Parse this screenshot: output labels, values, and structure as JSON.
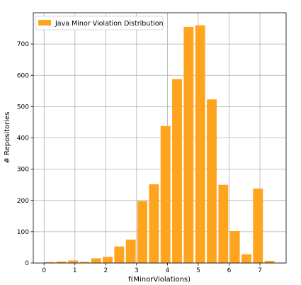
{
  "chart_data": {
    "type": "bar",
    "xlabel": "f(MinorViolations)",
    "ylabel": "# Repositories",
    "legend": {
      "label": "Java Minor Violation Distribution",
      "placement": "top-left"
    },
    "bar_color": "#ffa41f",
    "grid": true,
    "xlim": [
      -0.35,
      7.85
    ],
    "ylim": [
      0,
      800
    ],
    "xticks": [
      0,
      1,
      2,
      3,
      4,
      5,
      6,
      7
    ],
    "yticks": [
      0,
      100,
      200,
      300,
      400,
      500,
      600,
      700
    ],
    "bin_width": 0.375,
    "bin_centers": [
      0.1875,
      0.5625,
      0.9375,
      1.3125,
      1.6875,
      2.0625,
      2.4375,
      2.8125,
      3.1875,
      3.5625,
      3.9375,
      4.3125,
      4.6875,
      5.0625,
      5.4375,
      5.8125,
      6.1875,
      6.5625,
      6.9375,
      7.3125
    ],
    "values": [
      3,
      5,
      8,
      4,
      15,
      20,
      53,
      75,
      198,
      252,
      438,
      588,
      755,
      760,
      523,
      250,
      102,
      28,
      238,
      7
    ]
  }
}
